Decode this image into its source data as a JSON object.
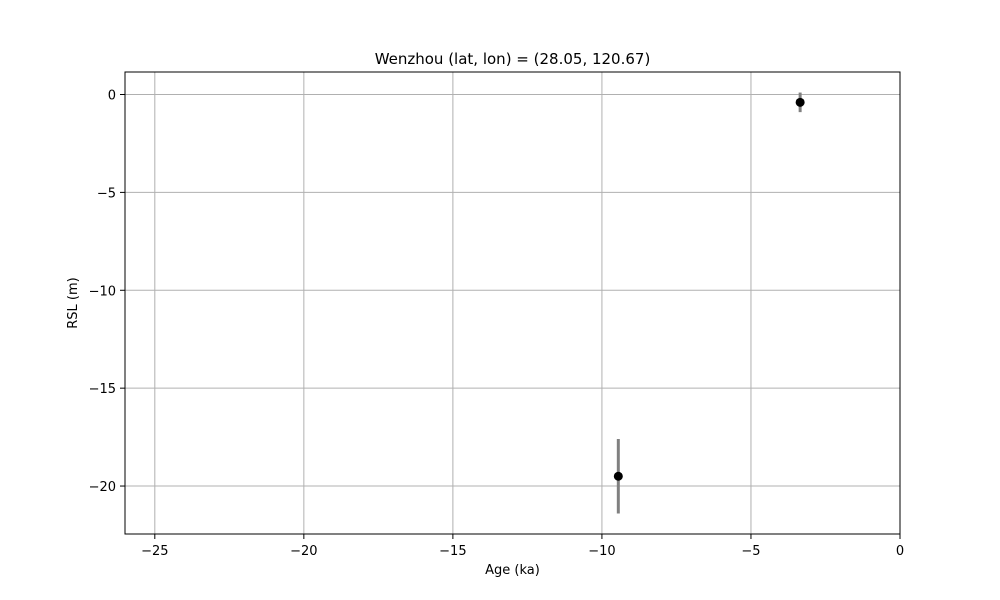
{
  "chart_data": {
    "type": "scatter",
    "title": "Wenzhou (lat, lon) = (28.05, 120.67)",
    "xlabel": "Age (ka)",
    "ylabel": "RSL (m)",
    "xlim": [
      -26.0,
      0.0
    ],
    "ylim": [
      -22.45,
      1.15
    ],
    "xticks": [
      -25,
      -20,
      -15,
      -10,
      -5,
      0
    ],
    "xtick_labels": [
      "−25",
      "−20",
      "−15",
      "−10",
      "−5",
      "0"
    ],
    "yticks": [
      0,
      -5,
      -10,
      -15,
      -20
    ],
    "ytick_labels": [
      "0",
      "−5",
      "−10",
      "−15",
      "−20"
    ],
    "grid": true,
    "series": [
      {
        "points": [
          {
            "x": -9.45,
            "y": -19.5,
            "y_err_low": 1.9,
            "y_err_high": 1.9
          },
          {
            "x": -3.35,
            "y": -0.4,
            "y_err_low": 0.5,
            "y_err_high": 0.5
          }
        ]
      }
    ],
    "colors": {
      "marker": "#000000",
      "errorbar": "#808080",
      "grid": "#b0b0b0",
      "axes": "#000000"
    }
  }
}
